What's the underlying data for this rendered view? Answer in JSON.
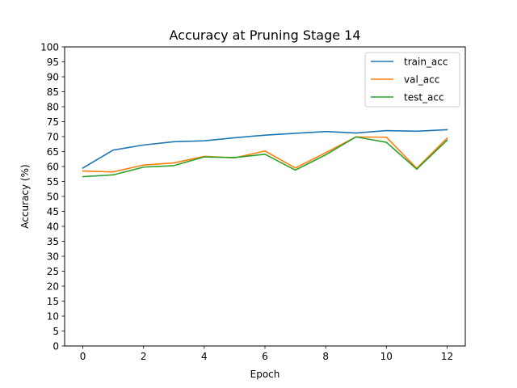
{
  "chart_data": {
    "type": "line",
    "title": "Accuracy at Pruning Stage 14",
    "xlabel": "Epoch",
    "ylabel": "Accuracy (%)",
    "x": [
      0,
      1,
      2,
      3,
      4,
      5,
      6,
      7,
      8,
      9,
      10,
      11,
      12
    ],
    "xlim": [
      -0.6,
      12.6
    ],
    "ylim": [
      0,
      100
    ],
    "xticks": [
      0,
      2,
      4,
      6,
      8,
      10,
      12
    ],
    "yticks": [
      0,
      5,
      10,
      15,
      20,
      25,
      30,
      35,
      40,
      45,
      50,
      55,
      60,
      65,
      70,
      75,
      80,
      85,
      90,
      95,
      100
    ],
    "grid": false,
    "legend_position": "top-right",
    "series": [
      {
        "name": "train_acc",
        "color": "#1f77b4",
        "values": [
          59.5,
          65.5,
          67.2,
          68.3,
          68.6,
          69.6,
          70.5,
          71.1,
          71.7,
          71.2,
          72.0,
          71.8,
          72.3
        ]
      },
      {
        "name": "val_acc",
        "color": "#ff7f0e",
        "values": [
          58.5,
          58.2,
          60.5,
          61.2,
          63.4,
          62.9,
          65.2,
          59.5,
          64.6,
          69.9,
          69.8,
          59.4,
          69.5
        ]
      },
      {
        "name": "test_acc",
        "color": "#2ca02c",
        "values": [
          56.6,
          57.2,
          59.8,
          60.3,
          63.2,
          63.0,
          64.1,
          58.8,
          63.9,
          69.9,
          68.1,
          59.1,
          68.8
        ]
      }
    ]
  }
}
